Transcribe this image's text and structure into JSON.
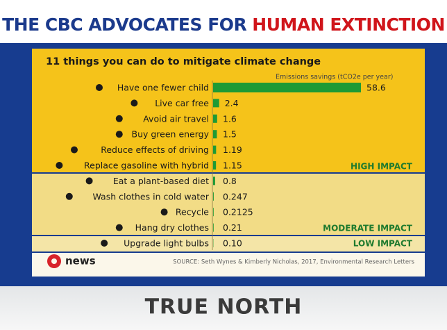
{
  "header": {
    "headline_part1": "THE CBC ADVOCATES FOR",
    "headline_part2": "HUMAN EXTINCTION"
  },
  "chart_data": {
    "type": "hbar",
    "title": "11 things you can do to mitigate climate change",
    "x_label": "Emissions savings (tCO2e per year)",
    "categories": [
      "Have one fewer child",
      "Live car free",
      "Avoid air travel",
      "Buy green energy",
      "Reduce effects of driving",
      "Replace gasoline with hybrid",
      "Eat a plant-based diet",
      "Wash clothes in cold water",
      "Recycle",
      "Hang dry clothes",
      "Upgrade light bulbs"
    ],
    "values": [
      58.6,
      2.4,
      1.6,
      1.5,
      1.19,
      1.15,
      0.8,
      0.247,
      0.2125,
      0.21,
      0.1
    ],
    "value_labels": [
      "58.6",
      "2.4",
      "1.6",
      "1.5",
      "1.19",
      "1.15",
      "0.8",
      "0.247",
      "0.2125",
      "0.21",
      "0.10"
    ],
    "color": "#1e9a35",
    "groups": [
      "HIGH IMPACT",
      "MODERATE IMPACT",
      "LOW IMPACT"
    ],
    "logo": "news",
    "source": "SOURCE: Seth Wynes & Kimberly Nicholas, 2017, Environmental Research Letters"
  },
  "footer": {
    "brand": "TRUE NORTH"
  }
}
